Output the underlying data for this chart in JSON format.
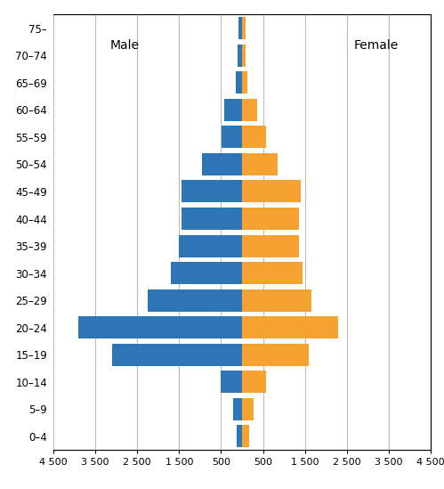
{
  "age_groups": [
    "0–4",
    "5–9",
    "10–14",
    "15–19",
    "20–24",
    "25–29",
    "30–34",
    "35–39",
    "40–44",
    "45–49",
    "50–54",
    "55–59",
    "60–64",
    "65–69",
    "70–74",
    "75–"
  ],
  "male": [
    130,
    220,
    500,
    3100,
    3900,
    2250,
    1700,
    1500,
    1450,
    1450,
    950,
    480,
    420,
    150,
    95,
    90
  ],
  "female": [
    180,
    270,
    580,
    1600,
    2300,
    1650,
    1450,
    1350,
    1350,
    1400,
    850,
    580,
    360,
    130,
    90,
    85
  ],
  "male_color": "#2E75B6",
  "female_color": "#F4A333",
  "xlim": [
    -4500,
    4500
  ],
  "xticks": [
    -4500,
    -3500,
    -2500,
    -1500,
    -500,
    500,
    1500,
    2500,
    3500,
    4500
  ],
  "xticklabels": [
    "4 500",
    "3 500",
    "2 500",
    "1 500",
    "500",
    "500",
    "1 500",
    "2 500",
    "3 500",
    "4 500"
  ],
  "male_label": "Male",
  "female_label": "Female",
  "bg_color": "#FFFFFF",
  "grid_color": "#BBBBBB",
  "spine_color": "#000000"
}
